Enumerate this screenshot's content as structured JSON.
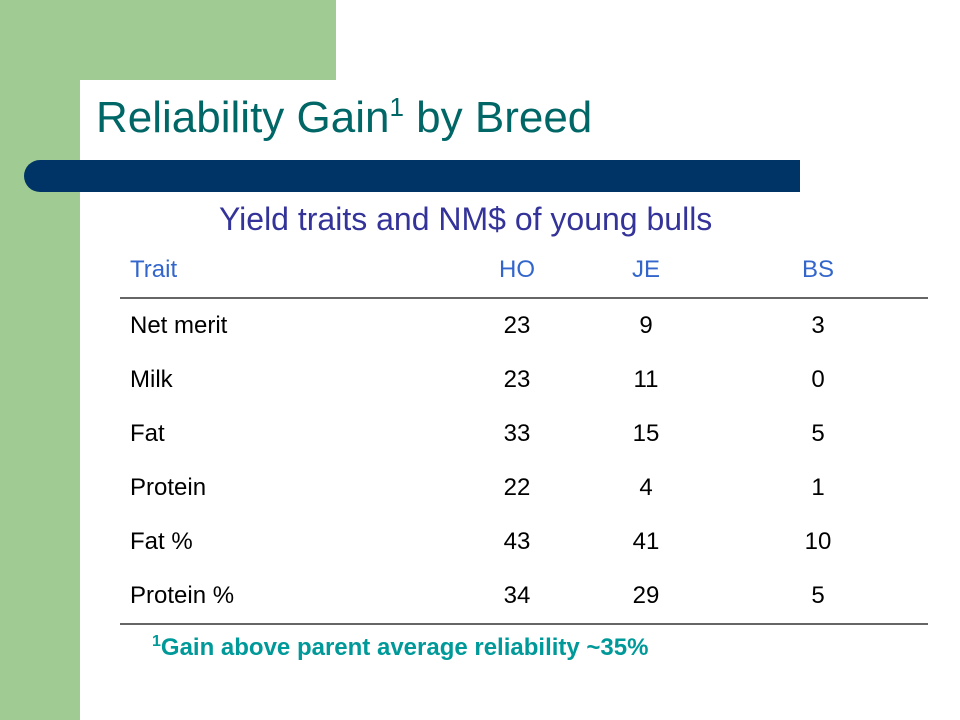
{
  "slide": {
    "title": "Reliability Gain",
    "title_superscript": "1",
    "title_suffix": " by Breed",
    "subtitle": "Yield traits and NM$ of young bulls",
    "colors": {
      "title": "#006666",
      "bar": "#003466",
      "accent": "#a0cc94",
      "subtitle": "#333399",
      "header": "#3366cc",
      "footnote": "#009999"
    }
  },
  "table": {
    "headers": [
      "Trait",
      "HO",
      "JE",
      "BS"
    ],
    "rows": [
      [
        "Net merit",
        "23",
        "9",
        "3"
      ],
      [
        "Milk",
        "23",
        "11",
        "0"
      ],
      [
        "Fat",
        "33",
        "15",
        "5"
      ],
      [
        "Protein",
        "22",
        "4",
        "1"
      ],
      [
        "Fat %",
        "43",
        "41",
        "10"
      ],
      [
        "Protein %",
        "34",
        "29",
        "5"
      ]
    ]
  },
  "footnote": {
    "marker": "1",
    "text": "Gain above parent average reliability ~35%"
  }
}
